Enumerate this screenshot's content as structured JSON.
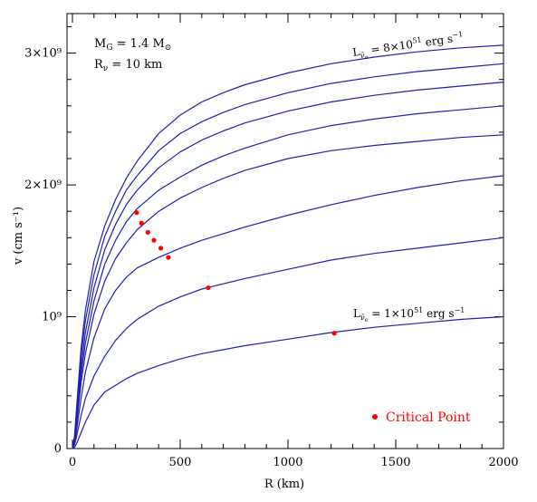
{
  "colors": {
    "curve": "#1f1fb4",
    "critical": "#ff0000",
    "axis": "#000000"
  },
  "chart_data": {
    "type": "line",
    "xlabel": "R (km)",
    "ylabel": "v (cm s⁻¹)",
    "xlim": [
      0,
      2000
    ],
    "ylim": [
      0,
      3300000000.0
    ],
    "x_ticks": [
      0,
      500,
      1000,
      1500,
      2000
    ],
    "x_tick_labels": [
      "0",
      "500",
      "1000",
      "1500",
      "2000"
    ],
    "y_ticks": [
      0,
      1000000000.0,
      2000000000.0,
      3000000000.0
    ],
    "y_tick_labels": [
      "0",
      "10⁹",
      "2×10⁹",
      "3×10⁹"
    ],
    "grid": false,
    "parameters": {
      "mass": {
        "lhs": "M",
        "sub": "G",
        "rhs": " = 1.4 M",
        "rsub": "⊙"
      },
      "radius": {
        "lhs": "R",
        "sub": "ν",
        "rhs": " = 10  km"
      }
    },
    "annotations": {
      "top": {
        "prefix": "L",
        "sub": "ν̄",
        "subsub": "e",
        "value": " = 8×10",
        "exp": "51",
        "unit": " erg  s",
        "unit_exp": "−1"
      },
      "bottom": {
        "prefix": "L",
        "sub": "ν̄",
        "subsub": "e",
        "value": " = 1×10",
        "exp": "51",
        "unit": " erg  s",
        "unit_exp": "−1"
      }
    },
    "legend": {
      "label": "Critical Point",
      "position": "bottom-right"
    },
    "series": [
      {
        "x": [
          0,
          10,
          20,
          40,
          60,
          100,
          150,
          200,
          250,
          300,
          400,
          500,
          600,
          700,
          800,
          1000,
          1200,
          1400,
          1600,
          1800,
          2000
        ],
        "y": [
          0,
          10000000.0,
          40000000.0,
          120000000.0,
          200000000.0,
          330000000.0,
          430000000.0,
          480000000.0,
          530000000.0,
          570000000.0,
          630000000.0,
          680000000.0,
          720000000.0,
          750000000.0,
          780000000.0,
          830000000.0,
          880000000.0,
          920000000.0,
          950000000.0,
          980000000.0,
          1000000000.0
        ]
      },
      {
        "x": [
          0,
          10,
          20,
          40,
          60,
          100,
          150,
          200,
          250,
          300,
          400,
          500,
          600,
          700,
          800,
          1000,
          1200,
          1400,
          1600,
          1800,
          2000
        ],
        "y": [
          0,
          30000000.0,
          100000000.0,
          250000000.0,
          380000000.0,
          550000000.0,
          700000000.0,
          820000000.0,
          910000000.0,
          980000000.0,
          1080000000.0,
          1150000000.0,
          1210000000.0,
          1250000000.0,
          1290000000.0,
          1360000000.0,
          1430000000.0,
          1480000000.0,
          1520000000.0,
          1560000000.0,
          1600000000.0
        ]
      },
      {
        "x": [
          0,
          10,
          20,
          40,
          60,
          100,
          150,
          200,
          250,
          300,
          400,
          500,
          600,
          700,
          800,
          1000,
          1200,
          1400,
          1600,
          1800,
          2000
        ],
        "y": [
          0,
          50000000.0,
          150000000.0,
          380000000.0,
          580000000.0,
          840000000.0,
          1060000000.0,
          1200000000.0,
          1300000000.0,
          1370000000.0,
          1450000000.0,
          1520000000.0,
          1580000000.0,
          1630000000.0,
          1680000000.0,
          1770000000.0,
          1850000000.0,
          1920000000.0,
          1980000000.0,
          2030000000.0,
          2070000000.0
        ]
      },
      {
        "x": [
          0,
          10,
          20,
          40,
          60,
          100,
          150,
          200,
          250,
          300,
          400,
          500,
          600,
          700,
          800,
          1000,
          1200,
          1400,
          1600,
          1800,
          2000
        ],
        "y": [
          0,
          60000000.0,
          200000000.0,
          500000000.0,
          720000000.0,
          1020000000.0,
          1270000000.0,
          1440000000.0,
          1560000000.0,
          1660000000.0,
          1800000000.0,
          1900000000.0,
          1980000000.0,
          2050000000.0,
          2110000000.0,
          2200000000.0,
          2260000000.0,
          2300000000.0,
          2330000000.0,
          2360000000.0,
          2380000000.0
        ]
      },
      {
        "x": [
          0,
          10,
          20,
          40,
          60,
          100,
          150,
          200,
          250,
          300,
          400,
          500,
          600,
          700,
          800,
          1000,
          1200,
          1400,
          1600,
          1800,
          2000
        ],
        "y": [
          0,
          70000000.0,
          230000000.0,
          560000000.0,
          800000000.0,
          1120000000.0,
          1400000000.0,
          1580000000.0,
          1720000000.0,
          1820000000.0,
          1960000000.0,
          2060000000.0,
          2150000000.0,
          2220000000.0,
          2280000000.0,
          2380000000.0,
          2450000000.0,
          2500000000.0,
          2540000000.0,
          2570000000.0,
          2600000000.0
        ]
      },
      {
        "x": [
          0,
          10,
          20,
          40,
          60,
          100,
          150,
          200,
          250,
          300,
          400,
          500,
          600,
          700,
          800,
          1000,
          1200,
          1400,
          1600,
          1800,
          2000
        ],
        "y": [
          0,
          80000000.0,
          260000000.0,
          620000000.0,
          880000000.0,
          1220000000.0,
          1510000000.0,
          1700000000.0,
          1850000000.0,
          1960000000.0,
          2130000000.0,
          2250000000.0,
          2340000000.0,
          2410000000.0,
          2470000000.0,
          2560000000.0,
          2630000000.0,
          2680000000.0,
          2720000000.0,
          2750000000.0,
          2780000000.0
        ]
      },
      {
        "x": [
          0,
          10,
          20,
          40,
          60,
          100,
          150,
          200,
          250,
          300,
          400,
          500,
          600,
          700,
          800,
          1000,
          1200,
          1400,
          1600,
          1800,
          2000
        ],
        "y": [
          0,
          90000000.0,
          300000000.0,
          700000000.0,
          970000000.0,
          1320000000.0,
          1610000000.0,
          1800000000.0,
          1960000000.0,
          2070000000.0,
          2260000000.0,
          2390000000.0,
          2480000000.0,
          2550000000.0,
          2610000000.0,
          2700000000.0,
          2770000000.0,
          2820000000.0,
          2860000000.0,
          2890000000.0,
          2920000000.0
        ]
      },
      {
        "x": [
          0,
          10,
          20,
          40,
          60,
          100,
          150,
          200,
          250,
          300,
          400,
          500,
          600,
          700,
          800,
          1000,
          1200,
          1400,
          1600,
          1800,
          2000
        ],
        "y": [
          0,
          100000000.0,
          330000000.0,
          760000000.0,
          1050000000.0,
          1420000000.0,
          1690000000.0,
          1890000000.0,
          2050000000.0,
          2180000000.0,
          2390000000.0,
          2530000000.0,
          2630000000.0,
          2700000000.0,
          2760000000.0,
          2850000000.0,
          2920000000.0,
          2970000000.0,
          3010000000.0,
          3040000000.0,
          3060000000.0
        ]
      }
    ],
    "critical_points": [
      {
        "x": 1215,
        "y": 875000000.0
      },
      {
        "x": 630,
        "y": 1220000000.0
      },
      {
        "x": 445,
        "y": 1450000000.0
      },
      {
        "x": 410,
        "y": 1520000000.0
      },
      {
        "x": 378,
        "y": 1580000000.0
      },
      {
        "x": 350,
        "y": 1640000000.0
      },
      {
        "x": 320,
        "y": 1710000000.0
      },
      {
        "x": 298,
        "y": 1790000000.0
      }
    ]
  }
}
